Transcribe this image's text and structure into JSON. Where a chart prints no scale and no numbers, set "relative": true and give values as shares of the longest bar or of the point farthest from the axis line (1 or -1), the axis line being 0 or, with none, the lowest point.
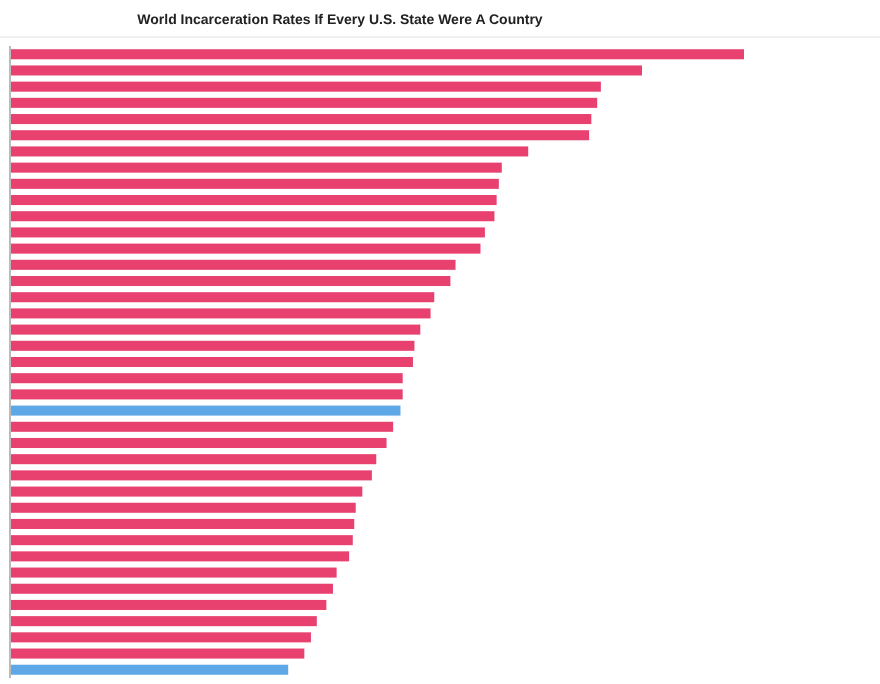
{
  "chart_data": {
    "type": "bar",
    "orientation": "horizontal",
    "relative": true,
    "title": "World Incarceration Rates If Every U.S. State Were A Country",
    "categories": [
      null,
      null,
      null,
      null,
      null,
      null,
      null,
      null,
      null,
      null,
      null,
      null,
      null,
      null,
      null,
      null,
      null,
      null,
      null,
      null,
      null,
      null,
      null,
      null,
      null,
      null,
      null,
      null,
      null,
      null,
      null,
      null,
      null,
      null,
      null,
      null,
      null,
      null,
      null
    ],
    "values": [
      1.0,
      0.861,
      0.805,
      0.8,
      0.792,
      0.789,
      0.706,
      0.67,
      0.666,
      0.663,
      0.66,
      0.647,
      0.641,
      0.607,
      0.6,
      0.578,
      0.573,
      0.559,
      0.551,
      0.549,
      0.535,
      0.535,
      0.532,
      0.522,
      0.513,
      0.499,
      0.493,
      0.48,
      0.471,
      0.469,
      0.467,
      0.462,
      0.445,
      0.44,
      0.431,
      0.418,
      0.41,
      0.401,
      0.379
    ],
    "colors": [
      "#e8416f",
      "#e8416f",
      "#e8416f",
      "#e8416f",
      "#e8416f",
      "#e8416f",
      "#e8416f",
      "#e8416f",
      "#e8416f",
      "#e8416f",
      "#e8416f",
      "#e8416f",
      "#e8416f",
      "#e8416f",
      "#e8416f",
      "#e8416f",
      "#e8416f",
      "#e8416f",
      "#e8416f",
      "#e8416f",
      "#e8416f",
      "#e8416f",
      "#5ea8e8",
      "#e8416f",
      "#e8416f",
      "#e8416f",
      "#e8416f",
      "#e8416f",
      "#e8416f",
      "#e8416f",
      "#e8416f",
      "#e8416f",
      "#e8416f",
      "#e8416f",
      "#e8416f",
      "#e8416f",
      "#e8416f",
      "#e8416f",
      "#5ea8e8"
    ]
  }
}
